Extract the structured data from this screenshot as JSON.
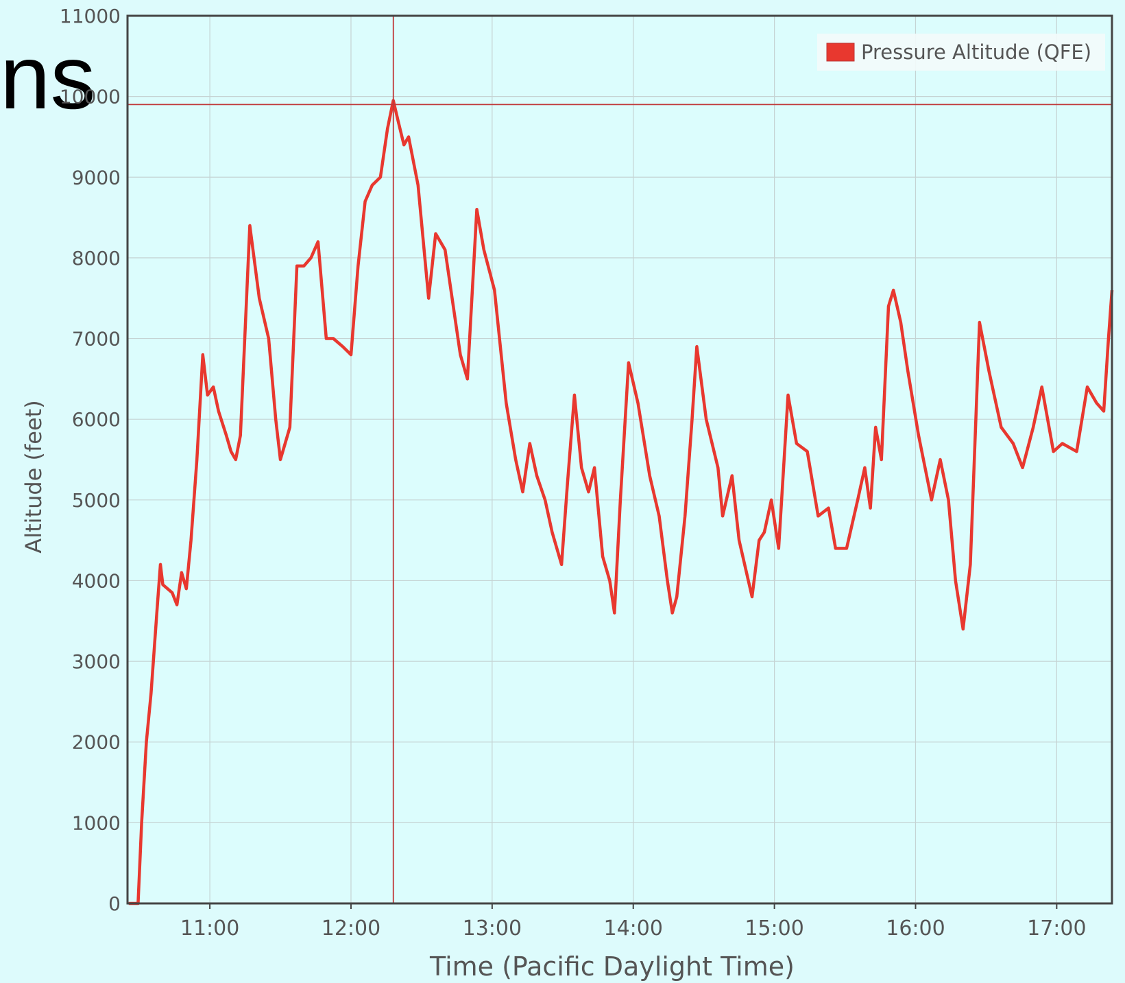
{
  "overlay_text": "ns",
  "chart_data": {
    "type": "line",
    "xlabel": "Time (Pacific Daylight Time)",
    "ylabel": "Altitude (feet)",
    "x": [
      625.5,
      629.5,
      631,
      633,
      635,
      637.7,
      639,
      640,
      644,
      646,
      648,
      650,
      652,
      654.5,
      657,
      659,
      661.5,
      663.7,
      667,
      669,
      671,
      673,
      677,
      681,
      685,
      688,
      690,
      692,
      694,
      697,
      700,
      703,
      706,
      709.5,
      712.5,
      716.5,
      720,
      723,
      726,
      729,
      732.5,
      735.5,
      738,
      740,
      742.5,
      744.5,
      748.5,
      753,
      756,
      760,
      763.5,
      766.5,
      769.5,
      773.5,
      776.5,
      781,
      786,
      790,
      793,
      796,
      799,
      802.5,
      805.5,
      809.5,
      812,
      815,
      818,
      821,
      823.5,
      827,
      830,
      832,
      834.5,
      838,
      842,
      847,
      851,
      854.5,
      856.6,
      858.5,
      862,
      865,
      867,
      871,
      876,
      878,
      882,
      885,
      890.5,
      893.5,
      895.7,
      898.7,
      901.8,
      905.8,
      909.4,
      914,
      918.6,
      923,
      926,
      930.7,
      935.4,
      938.4,
      940.8,
      943,
      945.5,
      948.5,
      950.6,
      953.7,
      956.7,
      961.3,
      966.8,
      970.5,
      974,
      977,
      980.2,
      983.3,
      987.2,
      991.2,
      996.4,
      1001.5,
      1005.5,
      1010,
      1013.7,
      1018.6,
      1022.4,
      1028.5,
      1033,
      1037,
      1040,
      1042,
      1043.5
    ],
    "series": [
      {
        "name": "Pressure Altitude (QFE)",
        "color": "#e8382f",
        "values": [
          0,
          0,
          1000,
          2000,
          2600,
          3700,
          4200,
          3950,
          3850,
          3700,
          4100,
          3900,
          4500,
          5500,
          6800,
          6300,
          6400,
          6100,
          5800,
          5600,
          5500,
          5800,
          8400,
          7500,
          7000,
          6000,
          5500,
          5700,
          5900,
          7900,
          7900,
          8000,
          8200,
          7000,
          7000,
          6900,
          6800,
          7900,
          8700,
          8900,
          9000,
          9600,
          9950,
          9700,
          9400,
          9500,
          8900,
          7500,
          8300,
          8100,
          7400,
          6800,
          6500,
          8600,
          8100,
          7600,
          6200,
          5500,
          5100,
          5700,
          5300,
          5000,
          4600,
          4200,
          5200,
          6300,
          5400,
          5100,
          5400,
          4300,
          4000,
          3600,
          5000,
          6700,
          6200,
          5300,
          4800,
          4000,
          3600,
          3800,
          4800,
          6000,
          6900,
          6000,
          5400,
          4800,
          5300,
          4500,
          3800,
          4500,
          4600,
          5000,
          4400,
          6300,
          5700,
          5600,
          4800,
          4900,
          4400,
          4400,
          5000,
          5400,
          4900,
          5900,
          5500,
          7400,
          7600,
          7200,
          6600,
          5800,
          5000,
          5500,
          5000,
          4000,
          3400,
          4200,
          7200,
          6600,
          5900,
          5700,
          5400,
          5900,
          6400,
          5600,
          5700,
          5600,
          6400,
          6200,
          6100,
          7000,
          7600
        ]
      }
    ],
    "xlim": [
      625,
      1043.5
    ],
    "ylim": [
      0,
      11000
    ],
    "xticks": [
      {
        "value": 660,
        "label": "11:00"
      },
      {
        "value": 720,
        "label": "12:00"
      },
      {
        "value": 780,
        "label": "13:00"
      },
      {
        "value": 840,
        "label": "14:00"
      },
      {
        "value": 900,
        "label": "15:00"
      },
      {
        "value": 960,
        "label": "16:00"
      },
      {
        "value": 1020,
        "label": "17:00"
      }
    ],
    "yticks": [
      0,
      1000,
      2000,
      3000,
      4000,
      5000,
      6000,
      7000,
      8000,
      9000,
      10000,
      11000
    ],
    "grid": true,
    "legend": "top-right",
    "crosshair": {
      "x": 738,
      "y": 9900,
      "color": "#c0393a"
    }
  }
}
